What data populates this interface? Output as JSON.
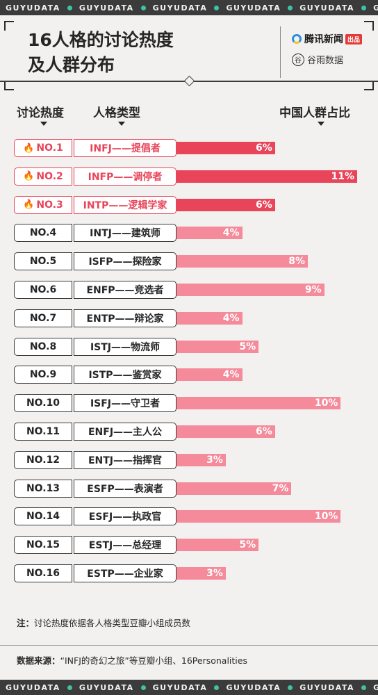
{
  "ticker_text": "GUYUDATA",
  "header": {
    "title_line1": "16人格的讨论热度",
    "title_line2": "及人群分布",
    "brand1_name": "腾讯新闻",
    "brand1_badge": "出品",
    "brand2_name": "谷雨数据",
    "brand2_icon": "谷"
  },
  "columns": {
    "rank": "讨论热度",
    "type": "人格类型",
    "share": "中国人群占比"
  },
  "fire_icon": "🔥",
  "colors": {
    "hot": "#e8455a",
    "normal": "#f48a9a",
    "accent": "#3ec2a5"
  },
  "chart_data": {
    "type": "bar",
    "orientation": "horizontal",
    "categories": [
      "INFJ——提倡者",
      "INFP——调停者",
      "INTP——逻辑学家",
      "INTJ——建筑师",
      "ISFP——探险家",
      "ENFP——竞选者",
      "ENTP——辩论家",
      "ISTJ——物流师",
      "ISTP——鉴赏家",
      "ISFJ——守卫者",
      "ENFJ——主人公",
      "ENTJ——指挥官",
      "ESFP——表演者",
      "ESFJ——执政官",
      "ESTJ——总经理",
      "ESTP——企业家"
    ],
    "ranks": [
      "NO.1",
      "NO.2",
      "NO.3",
      "NO.4",
      "NO.5",
      "NO.6",
      "NO.7",
      "NO.8",
      "NO.9",
      "NO.10",
      "NO.11",
      "NO.12",
      "NO.13",
      "NO.14",
      "NO.15",
      "NO.16"
    ],
    "values": [
      6,
      11,
      6,
      4,
      8,
      9,
      4,
      5,
      4,
      10,
      6,
      3,
      7,
      10,
      5,
      3
    ],
    "value_labels": [
      "6%",
      "11%",
      "6%",
      "4%",
      "8%",
      "9%",
      "4%",
      "5%",
      "4%",
      "10%",
      "6%",
      "3%",
      "7%",
      "10%",
      "5%",
      "3%"
    ],
    "hot": [
      true,
      true,
      true,
      false,
      false,
      false,
      false,
      false,
      false,
      false,
      false,
      false,
      false,
      false,
      false,
      false
    ],
    "xlim": [
      0,
      11
    ]
  },
  "note": {
    "label": "注：",
    "text": "讨论热度依据各人格类型豆瓣小组成员数"
  },
  "source": {
    "label": "数据来源：",
    "text": "“INFJ的奇幻之旅”等豆瓣小组、16Personalities"
  }
}
